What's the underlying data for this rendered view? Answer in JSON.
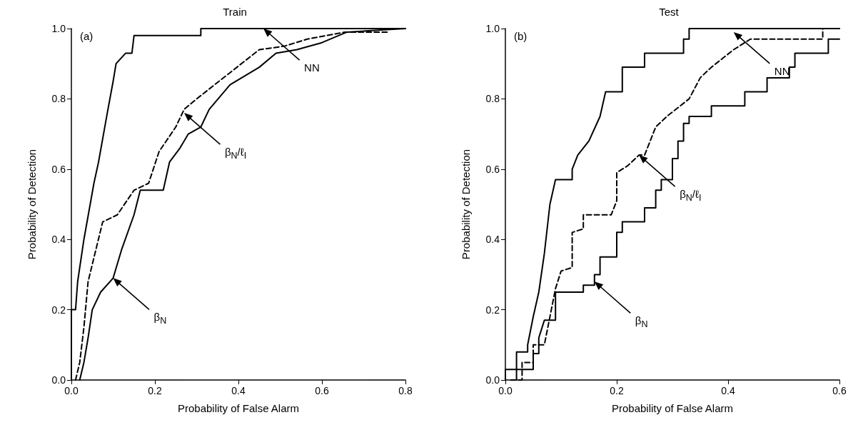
{
  "chart_data": [
    {
      "type": "line",
      "title": "Train",
      "xlabel": "Probability of False Alarm",
      "ylabel": "Probability of Detection",
      "marker": "none",
      "grid": false,
      "xlim": [
        0,
        0.8
      ],
      "xticks": [
        {
          "value": 0,
          "label": "0.0"
        },
        {
          "value": 0.2,
          "label": "0.2"
        },
        {
          "value": 0.4,
          "label": "0.4"
        },
        {
          "value": 0.6,
          "label": "0.6"
        },
        {
          "value": 0.8,
          "label": "0.8"
        }
      ],
      "ylim": [
        0,
        1
      ],
      "yticks": [
        {
          "value": 0,
          "label": "0.0"
        },
        {
          "value": 0.2,
          "label": "0.2"
        },
        {
          "value": 0.4,
          "label": "0.4"
        },
        {
          "value": 0.6,
          "label": "0.6"
        },
        {
          "value": 0.8,
          "label": "0.8"
        },
        {
          "value": 1,
          "label": "1.0"
        }
      ],
      "series": [
        {
          "color": "#000000",
          "line_style": "solid",
          "x": [
            0,
            0,
            0.01,
            0.015,
            0.03,
            0.054,
            0.065,
            0.086,
            0.1,
            0.107,
            0.13,
            0.145,
            0.15,
            0.31,
            0.31,
            0.8
          ],
          "values": [
            0,
            0.2,
            0.2,
            0.28,
            0.4,
            0.56,
            0.62,
            0.76,
            0.85,
            0.9,
            0.93,
            0.93,
            0.98,
            0.98,
            1.0,
            1.0
          ]
        },
        {
          "color": "#000000",
          "line_style": "dashed",
          "x": [
            0.01,
            0.02,
            0.03,
            0.04,
            0.075,
            0.11,
            0.15,
            0.185,
            0.21,
            0.25,
            0.27,
            0.3,
            0.375,
            0.45,
            0.51,
            0.565,
            0.655,
            0.76
          ],
          "values": [
            0,
            0.05,
            0.15,
            0.28,
            0.45,
            0.47,
            0.54,
            0.56,
            0.65,
            0.72,
            0.77,
            0.8,
            0.87,
            0.94,
            0.95,
            0.97,
            0.99,
            0.99
          ]
        },
        {
          "color": "#000000",
          "line_style": "solid",
          "x": [
            0.02,
            0.03,
            0.04,
            0.05,
            0.07,
            0.1,
            0.12,
            0.15,
            0.165,
            0.22,
            0.235,
            0.26,
            0.28,
            0.31,
            0.33,
            0.38,
            0.45,
            0.49,
            0.54,
            0.6,
            0.66,
            0.8
          ],
          "values": [
            0,
            0.05,
            0.12,
            0.2,
            0.25,
            0.29,
            0.37,
            0.47,
            0.54,
            0.54,
            0.62,
            0.66,
            0.7,
            0.72,
            0.77,
            0.84,
            0.89,
            0.93,
            0.94,
            0.96,
            0.99,
            1.0
          ]
        }
      ],
      "annotations": [
        "(a)",
        {
          "text": "NN",
          "x": 0.46,
          "y": 1.0
        },
        {
          "text": "β$_{N}$/ℓ$_{I}$",
          "x": 0.27,
          "y": 0.76
        },
        {
          "text": "β$_{N}$",
          "x": 0.1,
          "y": 0.29
        }
      ]
    },
    {
      "type": "line",
      "title": "Test",
      "xlabel": "Probability of False Alarm",
      "ylabel": "Probability of Detection",
      "marker": "none",
      "grid": false,
      "xlim": [
        0,
        0.6
      ],
      "xticks": [
        {
          "value": 0,
          "label": "0.0"
        },
        {
          "value": 0.2,
          "label": "0.2"
        },
        {
          "value": 0.4,
          "label": "0.4"
        },
        {
          "value": 0.6,
          "label": "0.6"
        }
      ],
      "ylim": [
        0,
        1
      ],
      "yticks": [
        {
          "value": 0,
          "label": "0.0"
        },
        {
          "value": 0.2,
          "label": "0.2"
        },
        {
          "value": 0.4,
          "label": "0.4"
        },
        {
          "value": 0.6,
          "label": "0.6"
        },
        {
          "value": 0.8,
          "label": "0.8"
        },
        {
          "value": 1,
          "label": "1.0"
        }
      ],
      "series": [
        {
          "color": "#000000",
          "line_style": "solid",
          "x": [
            0,
            0,
            0.02,
            0.02,
            0.04,
            0.04,
            0.05,
            0.06,
            0.07,
            0.08,
            0.09,
            0.12,
            0.12,
            0.13,
            0.15,
            0.17,
            0.18,
            0.21,
            0.21,
            0.25,
            0.25,
            0.32,
            0.32,
            0.33,
            0.33,
            0.6
          ],
          "values": [
            0,
            0.03,
            0.03,
            0.08,
            0.08,
            0.1,
            0.18,
            0.25,
            0.36,
            0.5,
            0.57,
            0.57,
            0.6,
            0.64,
            0.68,
            0.75,
            0.82,
            0.82,
            0.89,
            0.89,
            0.93,
            0.93,
            0.97,
            0.97,
            1.0,
            1.0
          ]
        },
        {
          "color": "#000000",
          "line_style": "dashed",
          "x": [
            0.01,
            0.03,
            0.03,
            0.05,
            0.05,
            0.07,
            0.08,
            0.09,
            0.1,
            0.12,
            0.12,
            0.14,
            0.14,
            0.19,
            0.2,
            0.2,
            0.22,
            0.24,
            0.25,
            0.27,
            0.29,
            0.33,
            0.35,
            0.37,
            0.41,
            0.44,
            0.57,
            0.57,
            0.6
          ],
          "values": [
            0,
            0,
            0.05,
            0.05,
            0.1,
            0.1,
            0.18,
            0.26,
            0.31,
            0.32,
            0.42,
            0.43,
            0.47,
            0.47,
            0.51,
            0.59,
            0.61,
            0.64,
            0.64,
            0.72,
            0.75,
            0.8,
            0.86,
            0.89,
            0.94,
            0.97,
            0.97,
            1.0,
            1.0
          ]
        },
        {
          "color": "#000000",
          "line_style": "solid",
          "x": [
            0.02,
            0.02,
            0.05,
            0.05,
            0.06,
            0.06,
            0.07,
            0.09,
            0.09,
            0.14,
            0.14,
            0.16,
            0.16,
            0.17,
            0.17,
            0.2,
            0.2,
            0.21,
            0.21,
            0.25,
            0.25,
            0.27,
            0.27,
            0.28,
            0.28,
            0.3,
            0.3,
            0.31,
            0.31,
            0.32,
            0.32,
            0.33,
            0.33,
            0.37,
            0.37,
            0.43,
            0.43,
            0.47,
            0.47,
            0.51,
            0.51,
            0.52,
            0.52,
            0.58,
            0.58,
            0.6
          ],
          "values": [
            0,
            0.03,
            0.03,
            0.075,
            0.075,
            0.12,
            0.17,
            0.17,
            0.25,
            0.25,
            0.27,
            0.27,
            0.3,
            0.3,
            0.35,
            0.35,
            0.42,
            0.42,
            0.45,
            0.45,
            0.49,
            0.49,
            0.54,
            0.54,
            0.57,
            0.57,
            0.63,
            0.63,
            0.68,
            0.68,
            0.73,
            0.73,
            0.75,
            0.75,
            0.78,
            0.78,
            0.82,
            0.82,
            0.86,
            0.86,
            0.89,
            0.89,
            0.93,
            0.93,
            0.97,
            0.97
          ]
        }
      ],
      "annotations": [
        "(b)",
        {
          "text": "NN",
          "x": 0.41,
          "y": 0.99
        },
        {
          "text": "β$_{N}$/ℓ$_{I}$",
          "x": 0.24,
          "y": 0.64
        },
        {
          "text": "β$_{N}$",
          "x": 0.16,
          "y": 0.28
        }
      ]
    }
  ]
}
